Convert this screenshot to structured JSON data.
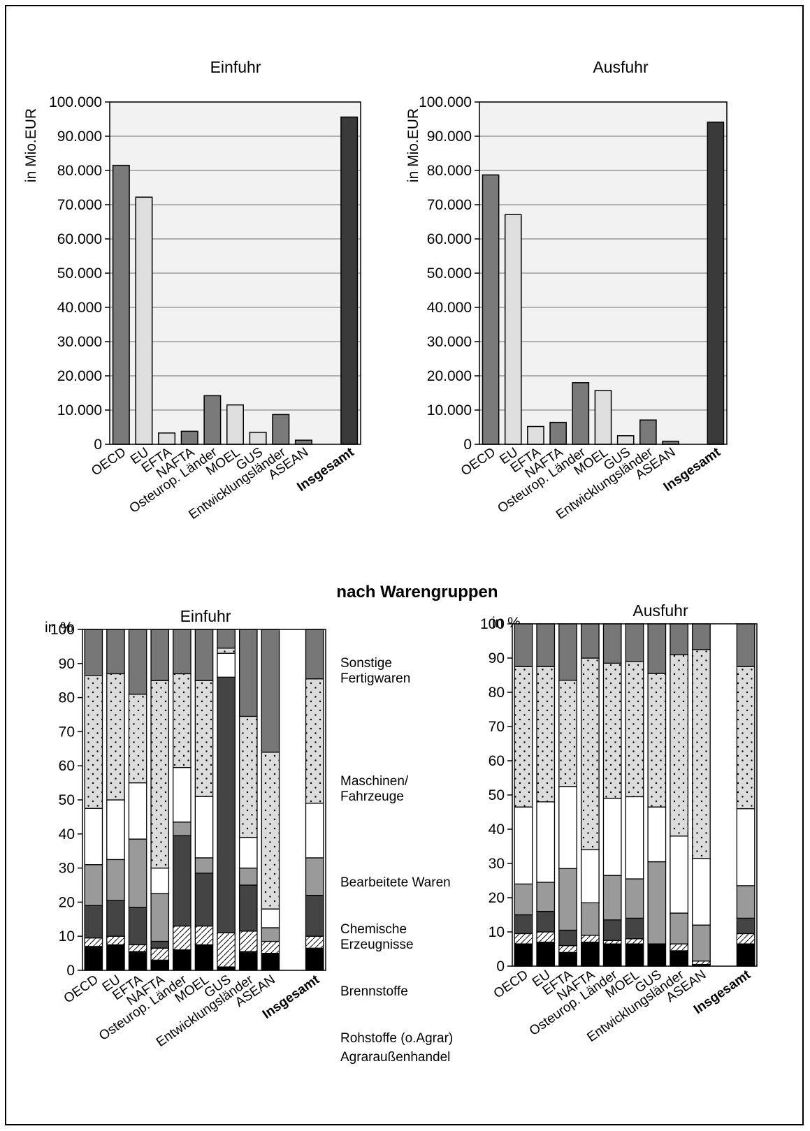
{
  "colors": {
    "bar_dark": "#7a7a7a",
    "bar_light": "#dedede",
    "bar_total": "#3a3a3a",
    "plot_bg": "#f2f2f2",
    "grid": "#888888",
    "sonstige": "#777777",
    "maschinen": "#dcdcdc",
    "bearbeitete": "#ffffff",
    "chemische": "#9a9a9a",
    "brennstoffe": "#444444",
    "rohstoffe": "#ffffff",
    "agrar": "#000000"
  },
  "section_title": "nach Warengruppen",
  "chart_data": [
    {
      "type": "bar",
      "title": "Einfuhr",
      "ylabel": "in Mio.EUR",
      "xlabel": "",
      "ylim": [
        0,
        100000
      ],
      "yticks": [
        "0",
        "10.000",
        "20.000",
        "30.000",
        "40.000",
        "50.000",
        "60.000",
        "70.000",
        "80.000",
        "90.000",
        "100.000"
      ],
      "grid": true,
      "categories": [
        "OECD",
        "EU",
        "EFTA",
        "NAFTA",
        "Osteurop. Länder",
        "MOEL",
        "GUS",
        "Entwicklungsländer",
        "ASEAN",
        "",
        "Insgesamt"
      ],
      "values": [
        81500,
        72200,
        3300,
        3800,
        14200,
        11500,
        3500,
        8700,
        1200,
        0,
        95600
      ],
      "bar_styles": [
        "dark",
        "light",
        "light",
        "dark",
        "dark",
        "light",
        "light",
        "dark",
        "dark",
        "none",
        "total"
      ]
    },
    {
      "type": "bar",
      "title": "Ausfuhr",
      "ylabel": "in Mio.EUR",
      "xlabel": "",
      "ylim": [
        0,
        100000
      ],
      "yticks": [
        "0",
        "10.000",
        "20.000",
        "30.000",
        "40.000",
        "50.000",
        "60.000",
        "70.000",
        "80.000",
        "90.000",
        "100.000"
      ],
      "grid": true,
      "categories": [
        "OECD",
        "EU",
        "EFTA",
        "NAFTA",
        "Osteurop. Länder",
        "MOEL",
        "GUS",
        "Entwicklungsländer",
        "ASEAN",
        "",
        "Insgesamt"
      ],
      "values": [
        78700,
        67100,
        5200,
        6400,
        18000,
        15700,
        2500,
        7100,
        900,
        0,
        94100
      ],
      "bar_styles": [
        "dark",
        "light",
        "light",
        "dark",
        "dark",
        "light",
        "light",
        "dark",
        "dark",
        "none",
        "total"
      ]
    },
    {
      "type": "bar",
      "stacked": true,
      "title": "Einfuhr",
      "ylabel": "in %",
      "ylim": [
        0,
        100
      ],
      "yticks": [
        "0",
        "10",
        "20",
        "30",
        "40",
        "50",
        "60",
        "70",
        "80",
        "90",
        "100"
      ],
      "categories": [
        "OECD",
        "EU",
        "EFTA",
        "NAFTA",
        "Osteurop. Länder",
        "MOEL",
        "GUS",
        "Entwicklungsländer",
        "ASEAN",
        "",
        "Insgesamt"
      ],
      "series": [
        {
          "name": "Agraraußenhandel",
          "key": "agrar",
          "values": [
            7,
            7.5,
            5.5,
            3,
            6,
            7.5,
            1,
            5.5,
            5,
            0,
            6.5
          ]
        },
        {
          "name": "Rohstoffe (o.Agrar)",
          "key": "rohstoffe",
          "values": [
            2.5,
            2.5,
            2,
            3.5,
            7,
            5.5,
            10,
            6,
            3.5,
            0,
            3.5
          ]
        },
        {
          "name": "Brennstoffe",
          "key": "brennstoffe",
          "values": [
            9.5,
            10.5,
            11,
            2,
            26.5,
            15.5,
            75,
            13.5,
            0,
            0,
            12
          ]
        },
        {
          "name": "Chemische Erzeugnisse",
          "key": "chemische",
          "values": [
            12,
            12,
            20,
            14,
            4,
            4.5,
            0,
            5,
            4,
            0,
            11
          ]
        },
        {
          "name": "Bearbeitete Waren",
          "key": "bearbeitete",
          "values": [
            16.5,
            17.5,
            16.5,
            7.5,
            16,
            18,
            7,
            9,
            5.5,
            0,
            16
          ]
        },
        {
          "name": "Maschinen/ Fahrzeuge",
          "key": "maschinen",
          "values": [
            39,
            37,
            26,
            55,
            27.5,
            34,
            1.5,
            35.5,
            46,
            0,
            36.5
          ]
        },
        {
          "name": "Sonstige Fertigwaren",
          "key": "sonstige",
          "values": [
            13.5,
            13,
            19,
            15,
            13,
            15,
            5.5,
            25.5,
            36,
            0,
            14.5
          ]
        }
      ],
      "legend_labels": [
        {
          "key": "sonstige",
          "lines": [
            "Sonstige",
            "Fertigwaren"
          ]
        },
        {
          "key": "maschinen",
          "lines": [
            "Maschinen/",
            "Fahrzeuge"
          ]
        },
        {
          "key": "bearbeitete",
          "lines": [
            "Bearbeitete Waren"
          ]
        },
        {
          "key": "chemische",
          "lines": [
            "Chemische",
            "Erzeugnisse"
          ]
        },
        {
          "key": "brennstoffe",
          "lines": [
            "Brennstoffe"
          ]
        },
        {
          "key": "rohstoffe",
          "lines": [
            "Rohstoffe (o.Agrar)"
          ]
        },
        {
          "key": "agrar",
          "lines": [
            "Agraraußenhandel"
          ]
        }
      ]
    },
    {
      "type": "bar",
      "stacked": true,
      "title": "Ausfuhr",
      "ylabel": "in %",
      "ylim": [
        0,
        100
      ],
      "yticks": [
        "0",
        "10",
        "20",
        "30",
        "40",
        "50",
        "60",
        "70",
        "80",
        "90",
        "100"
      ],
      "categories": [
        "OECD",
        "EU",
        "EFTA",
        "NAFTA",
        "Osteurop. Länder",
        "MOEL",
        "GUS",
        "Entwicklungsländer",
        "ASEAN",
        "",
        "Insgesamt"
      ],
      "series": [
        {
          "name": "Agraraußenhandel",
          "key": "agrar",
          "values": [
            6.5,
            7,
            4,
            7,
            6.5,
            6.5,
            6.5,
            4.5,
            0.5,
            0,
            6.5
          ]
        },
        {
          "name": "Rohstoffe (o.Agrar)",
          "key": "rohstoffe",
          "values": [
            3,
            3,
            2,
            2,
            1,
            1.5,
            0,
            2,
            1,
            0,
            3
          ]
        },
        {
          "name": "Brennstoffe",
          "key": "brennstoffe",
          "values": [
            5.5,
            6,
            4.5,
            0,
            6,
            6,
            0,
            0,
            0,
            0,
            4.5
          ]
        },
        {
          "name": "Chemische Erzeugnisse",
          "key": "chemische",
          "values": [
            9,
            8.5,
            18,
            9.5,
            13,
            11.5,
            24,
            9,
            10.5,
            0,
            9.5
          ]
        },
        {
          "name": "Bearbeitete Waren",
          "key": "bearbeitete",
          "values": [
            22.5,
            23.5,
            24,
            15.5,
            22.5,
            24,
            16,
            22.5,
            19.5,
            0,
            22.5
          ]
        },
        {
          "name": "Maschinen/ Fahrzeuge",
          "key": "maschinen",
          "values": [
            41,
            39.5,
            31,
            56,
            39.5,
            39.5,
            39,
            53,
            61,
            0,
            41.5
          ]
        },
        {
          "name": "Sonstige Fertigwaren",
          "key": "sonstige",
          "values": [
            12.5,
            12.5,
            16.5,
            10,
            11.5,
            11,
            14.5,
            9,
            7.5,
            0,
            12.5
          ]
        }
      ]
    }
  ]
}
